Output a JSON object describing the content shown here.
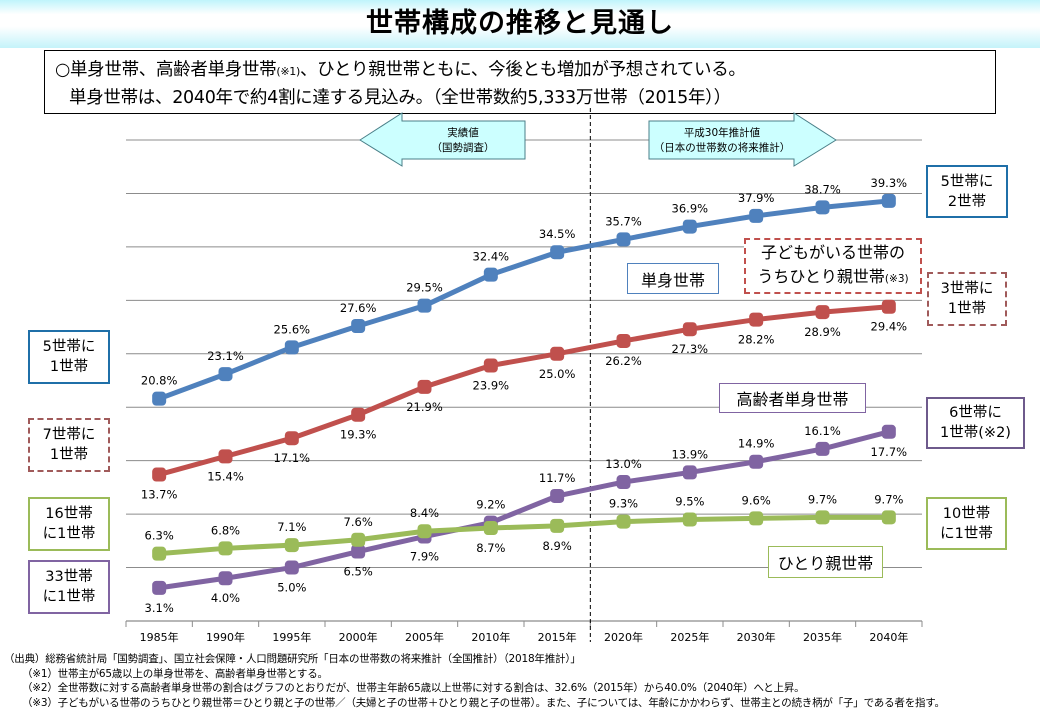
{
  "header": {
    "title": "世帯構成の推移と見通し"
  },
  "summary": {
    "line1_pre": "○単身世帯、高齢者単身世帯",
    "line1_note": "(※1)",
    "line1_post": "、ひとり親世帯ともに、今後とも増加が予想されている。",
    "line2": "単身世帯は、2040年で約4割に達する見込み。（全世帯数約5,333万世帯（2015年））"
  },
  "period_arrows": {
    "actual": {
      "line1": "実績値",
      "line2": "（国勢調査）"
    },
    "projection": {
      "line1": "平成30年推計値",
      "line2": "（日本の世帯数の将来推計）"
    }
  },
  "colors": {
    "single": "#4F81BD",
    "single_parent_of_child_households": "#C0504D",
    "elderly_single": "#8064A2",
    "single_parent": "#9BBB59",
    "arrow_fill": "#CCFFFF",
    "arrow_stroke": "#4A7F88",
    "grid": "#8C8C8C"
  },
  "series_labels": {
    "single": "単身世帯",
    "child_single_parent_line1": "子どもがいる世帯の",
    "child_single_parent_line2": "うちひとり親世帯",
    "child_single_parent_note": "(※3)",
    "elderly_single": "高齢者単身世帯",
    "single_parent": "ひとり親世帯"
  },
  "ratio_notes": {
    "left": [
      {
        "line1": "5世帯に",
        "line2": "1世帯"
      },
      {
        "line1": "7世帯に",
        "line2": "1世帯"
      },
      {
        "line1": "16世帯",
        "line2": "に1世帯"
      },
      {
        "line1": "33世帯",
        "line2": "に1世帯"
      }
    ],
    "right": [
      {
        "line1": "5世帯に",
        "line2": "2世帯"
      },
      {
        "line1": "3世帯に",
        "line2": "1世帯"
      },
      {
        "line1": "6世帯に",
        "line2": "1世帯(※2)"
      },
      {
        "line1": "10世帯",
        "line2": "に1世帯"
      }
    ]
  },
  "chart_data": {
    "type": "line",
    "title": "世帯構成の推移と見通し",
    "xlabel": "",
    "ylabel": "",
    "ylim": [
      0,
      45
    ],
    "grid": true,
    "gridline_step": 5,
    "show_y_ticks": false,
    "categories": [
      "1985年",
      "1990年",
      "1995年",
      "2000年",
      "2005年",
      "2010年",
      "2015年",
      "2020年",
      "2025年",
      "2030年",
      "2035年",
      "2040年"
    ],
    "divider_between": [
      "2015年",
      "2020年"
    ],
    "series": [
      {
        "key": "single",
        "name": "単身世帯",
        "color": "#4F81BD",
        "values": [
          20.8,
          23.1,
          25.6,
          27.6,
          29.5,
          32.4,
          34.5,
          35.7,
          36.9,
          37.9,
          38.7,
          39.3
        ],
        "labels": [
          "20.8%",
          "23.1%",
          "25.6%",
          "27.6%",
          "29.5%",
          "32.4%",
          "34.5%",
          "35.7%",
          "36.9%",
          "37.9%",
          "38.7%",
          "39.3%"
        ],
        "label_pos": [
          "above",
          "above",
          "above",
          "above",
          "above",
          "above",
          "above",
          "above",
          "above",
          "above",
          "above",
          "above"
        ]
      },
      {
        "key": "child_single_parent",
        "name": "子どもがいる世帯のうちひとり親世帯(※3)",
        "color": "#C0504D",
        "values": [
          13.7,
          15.4,
          17.1,
          19.3,
          21.9,
          23.9,
          25.0,
          26.2,
          27.3,
          28.2,
          28.9,
          29.4
        ],
        "labels": [
          "13.7%",
          "15.4%",
          "17.1%",
          "19.3%",
          "21.9%",
          "23.9%",
          "25.0%",
          "26.2%",
          "27.3%",
          "28.2%",
          "28.9%",
          "29.4%"
        ],
        "label_pos": [
          "below",
          "below",
          "below",
          "below",
          "below",
          "below",
          "below",
          "below",
          "below",
          "below",
          "below",
          "below"
        ]
      },
      {
        "key": "elderly_single",
        "name": "高齢者単身世帯",
        "color": "#8064A2",
        "values": [
          3.1,
          4.0,
          5.0,
          6.5,
          7.9,
          9.2,
          11.7,
          13.0,
          13.9,
          14.9,
          16.1,
          17.7
        ],
        "labels": [
          "3.1%",
          "4.0%",
          "5.0%",
          "6.5%",
          "7.9%",
          "9.2%",
          "11.7%",
          "13.0%",
          "13.9%",
          "14.9%",
          "16.1%",
          "17.7%"
        ],
        "label_pos": [
          "below",
          "below",
          "below",
          "below",
          "below",
          "above",
          "above",
          "above",
          "above",
          "above",
          "above",
          "below"
        ]
      },
      {
        "key": "single_parent",
        "name": "ひとり親世帯",
        "color": "#9BBB59",
        "values": [
          6.3,
          6.8,
          7.1,
          7.6,
          8.4,
          8.7,
          8.9,
          9.3,
          9.5,
          9.6,
          9.7,
          9.7
        ],
        "labels": [
          "6.3%",
          "6.8%",
          "7.1%",
          "7.6%",
          "8.4%",
          "8.7%",
          "8.9%",
          "9.3%",
          "9.5%",
          "9.6%",
          "9.7%",
          "9.7%"
        ],
        "label_pos": [
          "above",
          "above",
          "above",
          "above",
          "above",
          "below",
          "below",
          "above",
          "above",
          "above",
          "above",
          "above"
        ]
      }
    ]
  },
  "footnotes": {
    "source": "（出典）総務省統計局「国勢調査」、国立社会保障・人口問題研究所「日本の世帯数の将来推計（全国推計）（2018年推計）」",
    "note1": "（※1）世帯主が65歳以上の単身世帯を、高齢者単身世帯とする。",
    "note2": "（※2）全世帯数に対する高齢者単身世帯の割合はグラフのとおりだが、世帯主年齢65歳以上世帯に対する割合は、32.6%（2015年）から40.0%（2040年）へと上昇。",
    "note3": "（※3）子どもがいる世帯のうちひとり親世帯＝ひとり親と子の世帯／（夫婦と子の世帯＋ひとり親と子の世帯）。また、子については、年齢にかかわらず、世帯主との続き柄が「子」である者を指す。"
  }
}
